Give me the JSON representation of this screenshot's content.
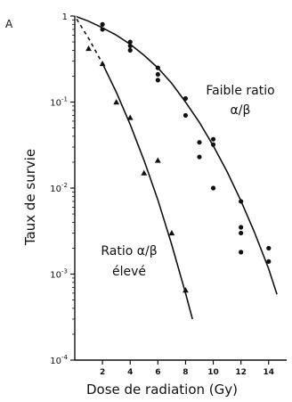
{
  "chart_data": {
    "type": "scatter",
    "panel_label": "A",
    "xlabel": "Dose de radiation (Gy)",
    "ylabel": "Taux de survie",
    "xlim": [
      0,
      15.3
    ],
    "ylim": [
      0.0001,
      1
    ],
    "yscale": "log",
    "x_ticks": [
      2,
      4,
      6,
      8,
      10,
      12,
      14
    ],
    "y_ticks": [
      {
        "value": 1,
        "mantissa": "1",
        "exponent": ""
      },
      {
        "value": 0.1,
        "mantissa": "10",
        "exponent": "-1"
      },
      {
        "value": 0.01,
        "mantissa": "10",
        "exponent": "-2"
      },
      {
        "value": 0.001,
        "mantissa": "10",
        "exponent": "-3"
      },
      {
        "value": 0.0001,
        "mantissa": "10",
        "exponent": "-4"
      }
    ],
    "grid": false,
    "series": [
      {
        "label_lines": [
          "Faible ratio",
          "α/β"
        ],
        "marker": "circle",
        "points": [
          [
            2,
            0.8
          ],
          [
            2,
            0.7
          ],
          [
            4,
            0.5
          ],
          [
            4,
            0.45
          ],
          [
            4,
            0.4
          ],
          [
            6,
            0.25
          ],
          [
            6,
            0.21
          ],
          [
            6,
            0.18
          ],
          [
            8,
            0.11
          ],
          [
            8,
            0.07
          ],
          [
            9,
            0.034
          ],
          [
            9,
            0.023
          ],
          [
            10,
            0.037
          ],
          [
            10,
            0.032
          ],
          [
            10,
            0.01
          ],
          [
            12,
            0.007
          ],
          [
            12,
            0.0035
          ],
          [
            12,
            0.003
          ],
          [
            12,
            0.0018
          ],
          [
            14,
            0.002
          ],
          [
            14,
            0.0014
          ]
        ],
        "fit": [
          [
            0,
            1
          ],
          [
            1,
            0.87
          ],
          [
            2,
            0.73
          ],
          [
            3,
            0.6
          ],
          [
            4,
            0.47
          ],
          [
            5,
            0.35
          ],
          [
            6,
            0.25
          ],
          [
            7,
            0.165
          ],
          [
            8,
            0.1
          ],
          [
            9,
            0.058
          ],
          [
            10,
            0.031
          ],
          [
            11,
            0.0155
          ],
          [
            12,
            0.0071
          ],
          [
            13,
            0.003
          ],
          [
            14,
            0.00115
          ],
          [
            14.6,
            0.00058
          ]
        ]
      },
      {
        "label_lines": [
          "Ratio α/β",
          "élevé"
        ],
        "marker": "triangle",
        "points": [
          [
            1,
            0.42
          ],
          [
            2,
            0.28
          ],
          [
            3,
            0.1
          ],
          [
            4,
            0.066
          ],
          [
            5,
            0.015
          ],
          [
            6,
            0.021
          ],
          [
            7,
            0.003
          ],
          [
            8,
            0.00065
          ]
        ],
        "fit": [
          [
            0,
            1
          ],
          [
            1,
            0.55
          ],
          [
            2,
            0.28
          ],
          [
            3,
            0.13
          ],
          [
            4,
            0.055
          ],
          [
            5,
            0.021
          ],
          [
            6,
            0.0073
          ],
          [
            7,
            0.0022
          ],
          [
            8,
            0.0006
          ],
          [
            8.5,
            0.0003
          ]
        ]
      }
    ]
  }
}
